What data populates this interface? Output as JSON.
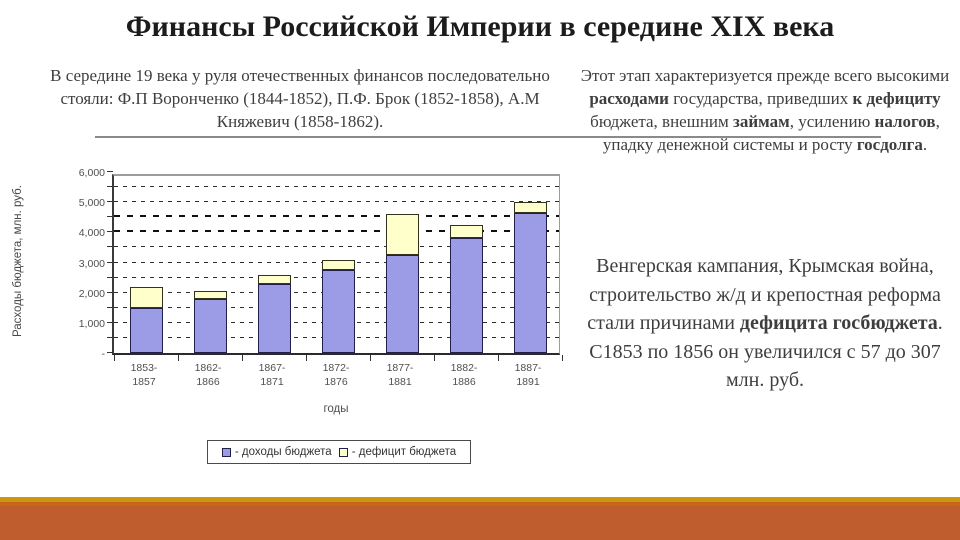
{
  "slide": {
    "title": "Финансы Российской Империи в середине XIX века",
    "paragraphs": {
      "left": [
        {
          "t": "В середине 19 века у руля отечественных финансов последовательно стояли: Ф.П Воронченко (1844-1852), П.Ф. Брок (1852-1858), А.М Княжевич (1858-1862).",
          "b": false
        }
      ],
      "right_top": [
        {
          "t": "Этот этап характеризуется прежде всего высокими ",
          "b": false
        },
        {
          "t": "расходами",
          "b": true
        },
        {
          "t": " государства, приведших ",
          "b": false
        },
        {
          "t": "к дефициту",
          "b": true
        },
        {
          "t": " бюджета, внешним ",
          "b": false
        },
        {
          "t": "займам",
          "b": true
        },
        {
          "t": ", усилению ",
          "b": false
        },
        {
          "t": "налогов",
          "b": true
        },
        {
          "t": ", упадку денежной системы и росту ",
          "b": false
        },
        {
          "t": "госдолга",
          "b": true
        },
        {
          "t": ".",
          "b": false
        }
      ],
      "right_bottom": [
        {
          "t": "Венгерская кампания, Крымская война, строительство ж/д и крепостная реформа стали причинами ",
          "b": false
        },
        {
          "t": "дефицита госбюджета",
          "b": true
        },
        {
          "t": ". С1853 по 1856 он увеличился с 57 до 307 млн. руб.",
          "b": false
        }
      ]
    },
    "colors": {
      "divider": "#8a8a8a",
      "stripe_gold": "#cc9710",
      "stripe_orange": "#c76619",
      "stripe_rust": "#c05d2f"
    }
  },
  "chart_data": {
    "type": "bar",
    "stacked": true,
    "categories": [
      "1853-1857",
      "1862-1866",
      "1867-1871",
      "1872-1876",
      "1877-1881",
      "1882-1886",
      "1887-1891"
    ],
    "series": [
      {
        "name": "доходы бюджета",
        "color": "#9b9be6",
        "border": "#20204a",
        "values": [
          1500,
          1800,
          2300,
          2750,
          3250,
          3800,
          4650
        ]
      },
      {
        "name": "дефицит бюджета",
        "color": "#ffffcc",
        "border": "#33331d",
        "values": [
          700,
          250,
          300,
          350,
          1350,
          450,
          350
        ]
      }
    ],
    "stack_totals": [
      2200,
      2050,
      2600,
      3100,
      4600,
      4250,
      5000
    ],
    "title": "",
    "xlabel": "годы",
    "ylabel": "Расходы бюджета, млн. руб.",
    "ylim": [
      0,
      6000
    ],
    "ytick_interval": 1000,
    "ytick_labels": [
      "-",
      "1,000",
      "2,000",
      "3,000",
      "4,000",
      "5,000",
      "6,000"
    ],
    "gridline_interval": 500,
    "bold_gridlines": [
      4000,
      4500
    ],
    "grid": true,
    "legend_position": "bottom",
    "legend_labels": [
      "- доходы бюджета",
      "- дефицит бюджета"
    ]
  }
}
